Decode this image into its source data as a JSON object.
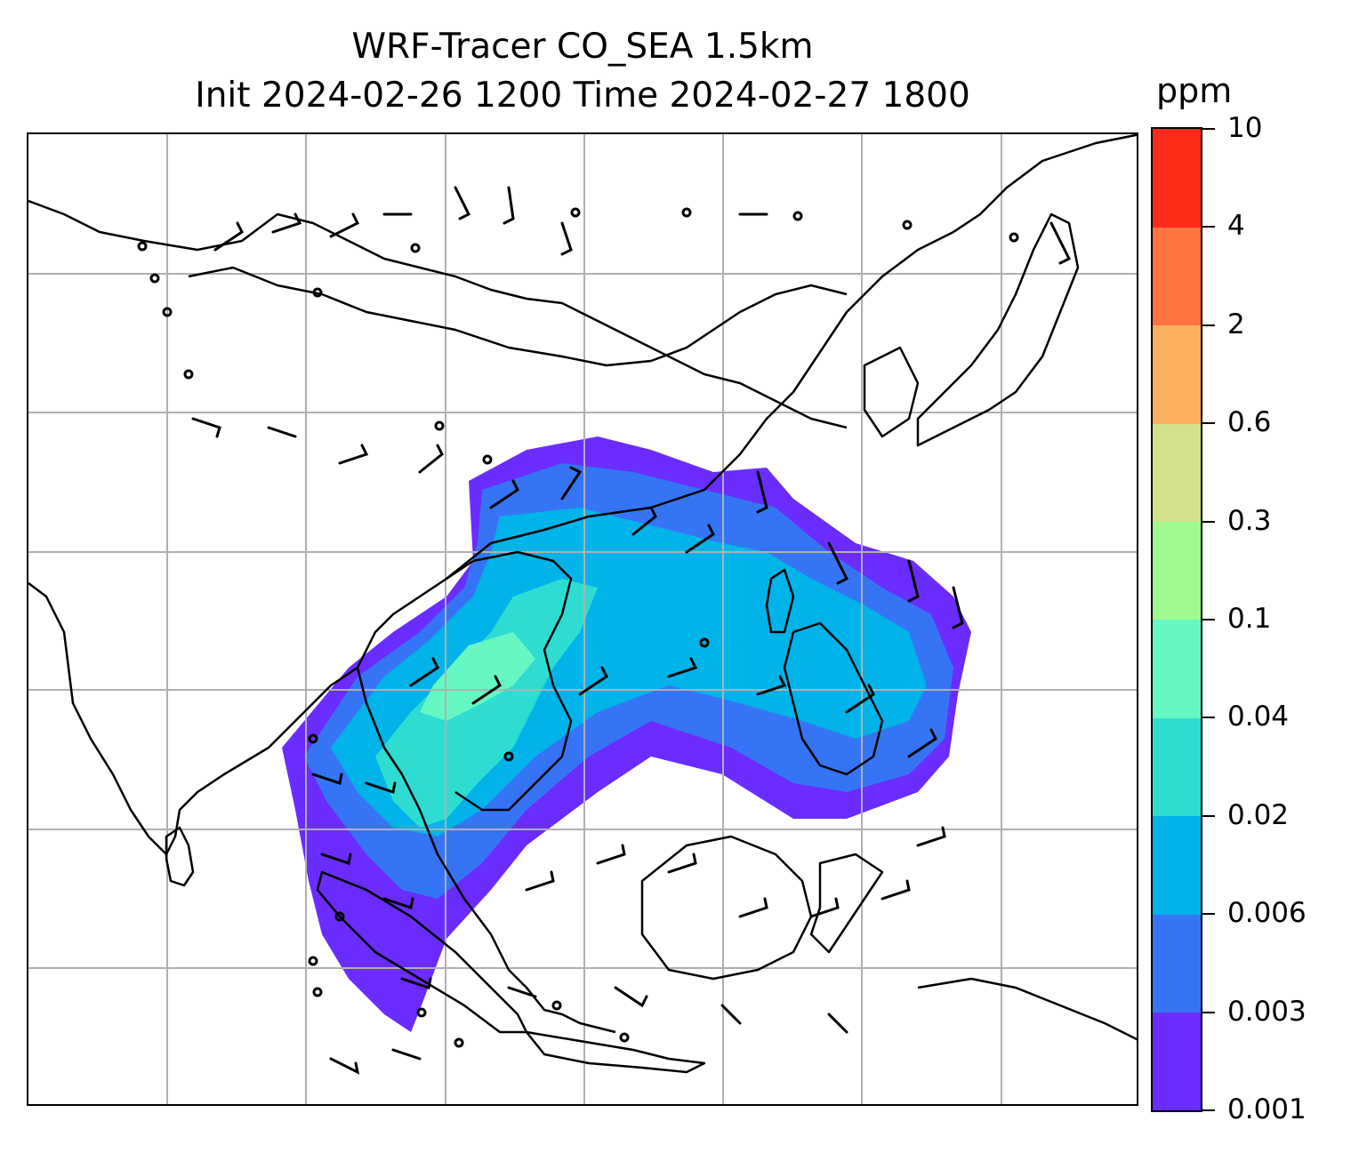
{
  "title": {
    "line1": "WRF-Tracer CO_SEA 1.5km",
    "line2": "Init 2024-02-26 1200 Time 2024-02-27 1800"
  },
  "colorbar": {
    "unit_label": "ppm",
    "ticks": [
      "0.001",
      "0.003",
      "0.006",
      "0.02",
      "0.04",
      "0.1",
      "0.3",
      "0.6",
      "2",
      "4",
      "10"
    ],
    "colors": [
      "#6a2cff",
      "#3575f5",
      "#00b3e8",
      "#2fdcd2",
      "#67f7c3",
      "#9ef98f",
      "#d1e28a",
      "#fdb15f",
      "#ff7340",
      "#ff2b1a"
    ]
  },
  "map": {
    "gridline_color": "#b0b0b0",
    "coastline_color": "#000000",
    "wind_barb_color": "#000000"
  }
}
